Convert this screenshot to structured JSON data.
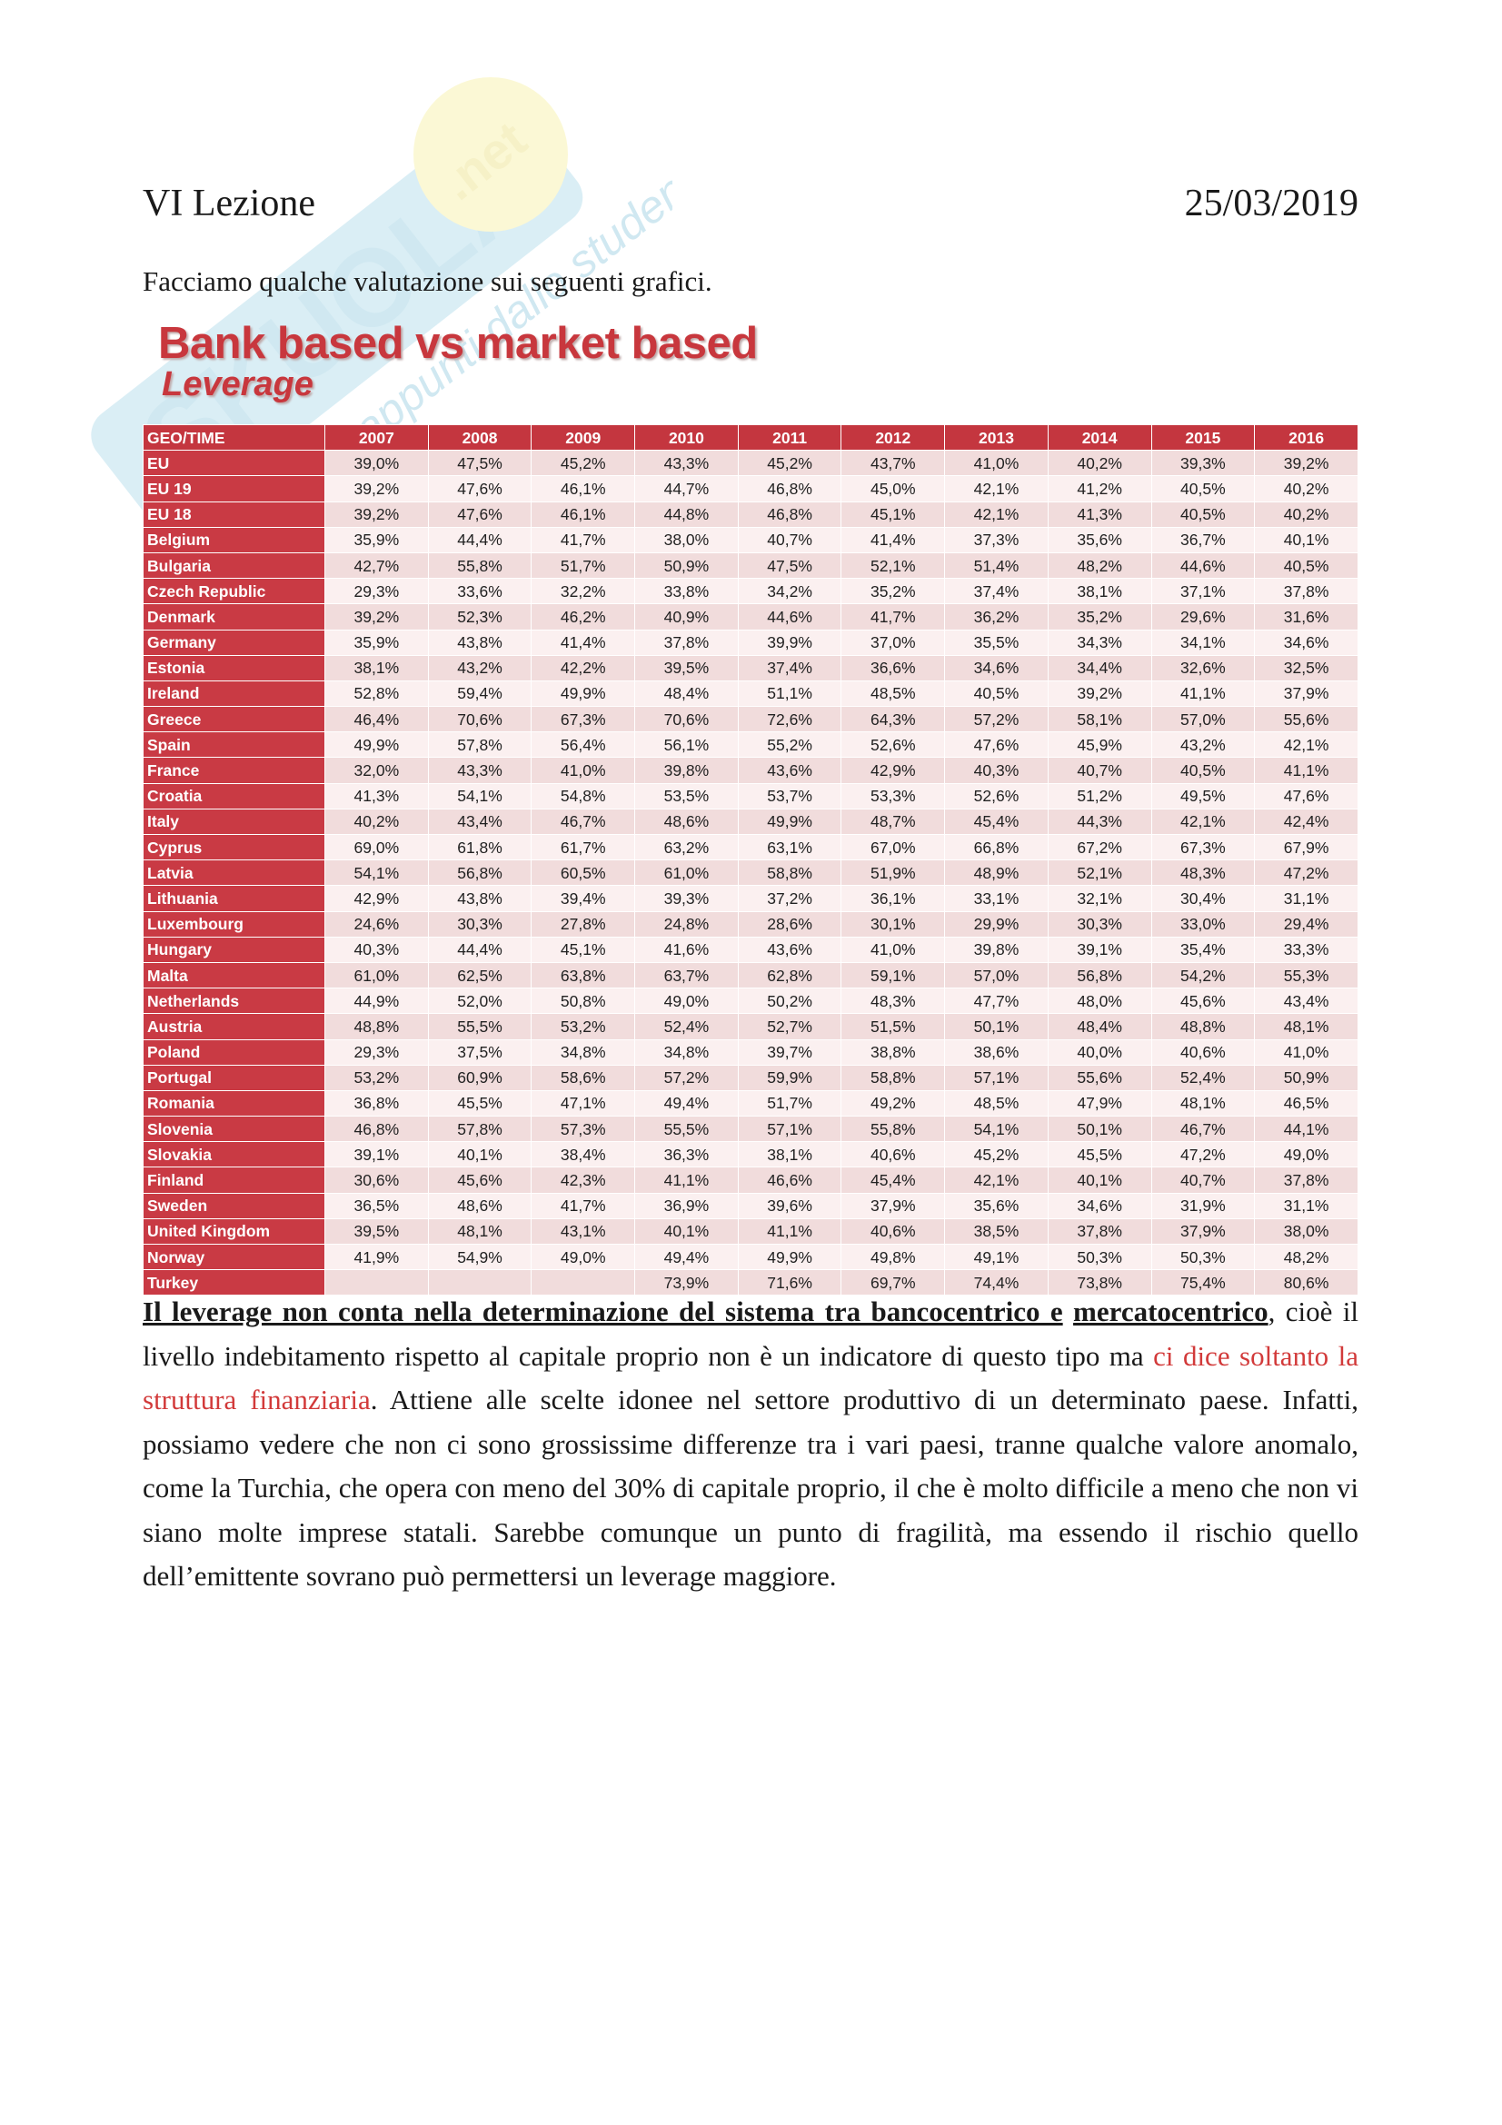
{
  "header": {
    "lesson": "VI Lezione",
    "date": "25/03/2019"
  },
  "intro": "Facciamo qualche valutazione sui seguenti grafici.",
  "watermark": {
    "brand": "Skuola.net",
    "tagline": "appunti dallo studente"
  },
  "figure": {
    "title": "Bank based vs market based",
    "subtitle": "Leverage"
  },
  "table": {
    "corner": "GEO/TIME",
    "years": [
      "2007",
      "2008",
      "2009",
      "2010",
      "2011",
      "2012",
      "2013",
      "2014",
      "2015",
      "2016"
    ],
    "rows": [
      {
        "geo": "EU",
        "values": [
          "39,0%",
          "47,5%",
          "45,2%",
          "43,3%",
          "45,2%",
          "43,7%",
          "41,0%",
          "40,2%",
          "39,3%",
          "39,2%"
        ]
      },
      {
        "geo": "EU 19",
        "values": [
          "39,2%",
          "47,6%",
          "46,1%",
          "44,7%",
          "46,8%",
          "45,0%",
          "42,1%",
          "41,2%",
          "40,5%",
          "40,2%"
        ]
      },
      {
        "geo": "EU 18",
        "values": [
          "39,2%",
          "47,6%",
          "46,1%",
          "44,8%",
          "46,8%",
          "45,1%",
          "42,1%",
          "41,3%",
          "40,5%",
          "40,2%"
        ]
      },
      {
        "geo": "Belgium",
        "values": [
          "35,9%",
          "44,4%",
          "41,7%",
          "38,0%",
          "40,7%",
          "41,4%",
          "37,3%",
          "35,6%",
          "36,7%",
          "40,1%"
        ]
      },
      {
        "geo": "Bulgaria",
        "values": [
          "42,7%",
          "55,8%",
          "51,7%",
          "50,9%",
          "47,5%",
          "52,1%",
          "51,4%",
          "48,2%",
          "44,6%",
          "40,5%"
        ]
      },
      {
        "geo": "Czech Republic",
        "values": [
          "29,3%",
          "33,6%",
          "32,2%",
          "33,8%",
          "34,2%",
          "35,2%",
          "37,4%",
          "38,1%",
          "37,1%",
          "37,8%"
        ]
      },
      {
        "geo": "Denmark",
        "values": [
          "39,2%",
          "52,3%",
          "46,2%",
          "40,9%",
          "44,6%",
          "41,7%",
          "36,2%",
          "35,2%",
          "29,6%",
          "31,6%"
        ]
      },
      {
        "geo": "Germany",
        "values": [
          "35,9%",
          "43,8%",
          "41,4%",
          "37,8%",
          "39,9%",
          "37,0%",
          "35,5%",
          "34,3%",
          "34,1%",
          "34,6%"
        ]
      },
      {
        "geo": "Estonia",
        "values": [
          "38,1%",
          "43,2%",
          "42,2%",
          "39,5%",
          "37,4%",
          "36,6%",
          "34,6%",
          "34,4%",
          "32,6%",
          "32,5%"
        ]
      },
      {
        "geo": "Ireland",
        "values": [
          "52,8%",
          "59,4%",
          "49,9%",
          "48,4%",
          "51,1%",
          "48,5%",
          "40,5%",
          "39,2%",
          "41,1%",
          "37,9%"
        ]
      },
      {
        "geo": "Greece",
        "values": [
          "46,4%",
          "70,6%",
          "67,3%",
          "70,6%",
          "72,6%",
          "64,3%",
          "57,2%",
          "58,1%",
          "57,0%",
          "55,6%"
        ]
      },
      {
        "geo": "Spain",
        "values": [
          "49,9%",
          "57,8%",
          "56,4%",
          "56,1%",
          "55,2%",
          "52,6%",
          "47,6%",
          "45,9%",
          "43,2%",
          "42,1%"
        ]
      },
      {
        "geo": "France",
        "values": [
          "32,0%",
          "43,3%",
          "41,0%",
          "39,8%",
          "43,6%",
          "42,9%",
          "40,3%",
          "40,7%",
          "40,5%",
          "41,1%"
        ]
      },
      {
        "geo": "Croatia",
        "values": [
          "41,3%",
          "54,1%",
          "54,8%",
          "53,5%",
          "53,7%",
          "53,3%",
          "52,6%",
          "51,2%",
          "49,5%",
          "47,6%"
        ]
      },
      {
        "geo": "Italy",
        "values": [
          "40,2%",
          "43,4%",
          "46,7%",
          "48,6%",
          "49,9%",
          "48,7%",
          "45,4%",
          "44,3%",
          "42,1%",
          "42,4%"
        ]
      },
      {
        "geo": "Cyprus",
        "values": [
          "69,0%",
          "61,8%",
          "61,7%",
          "63,2%",
          "63,1%",
          "67,0%",
          "66,8%",
          "67,2%",
          "67,3%",
          "67,9%"
        ]
      },
      {
        "geo": "Latvia",
        "values": [
          "54,1%",
          "56,8%",
          "60,5%",
          "61,0%",
          "58,8%",
          "51,9%",
          "48,9%",
          "52,1%",
          "48,3%",
          "47,2%"
        ]
      },
      {
        "geo": "Lithuania",
        "values": [
          "42,9%",
          "43,8%",
          "39,4%",
          "39,3%",
          "37,2%",
          "36,1%",
          "33,1%",
          "32,1%",
          "30,4%",
          "31,1%"
        ]
      },
      {
        "geo": "Luxembourg",
        "values": [
          "24,6%",
          "30,3%",
          "27,8%",
          "24,8%",
          "28,6%",
          "30,1%",
          "29,9%",
          "30,3%",
          "33,0%",
          "29,4%"
        ]
      },
      {
        "geo": "Hungary",
        "values": [
          "40,3%",
          "44,4%",
          "45,1%",
          "41,6%",
          "43,6%",
          "41,0%",
          "39,8%",
          "39,1%",
          "35,4%",
          "33,3%"
        ]
      },
      {
        "geo": "Malta",
        "values": [
          "61,0%",
          "62,5%",
          "63,8%",
          "63,7%",
          "62,8%",
          "59,1%",
          "57,0%",
          "56,8%",
          "54,2%",
          "55,3%"
        ]
      },
      {
        "geo": "Netherlands",
        "values": [
          "44,9%",
          "52,0%",
          "50,8%",
          "49,0%",
          "50,2%",
          "48,3%",
          "47,7%",
          "48,0%",
          "45,6%",
          "43,4%"
        ]
      },
      {
        "geo": "Austria",
        "values": [
          "48,8%",
          "55,5%",
          "53,2%",
          "52,4%",
          "52,7%",
          "51,5%",
          "50,1%",
          "48,4%",
          "48,8%",
          "48,1%"
        ]
      },
      {
        "geo": "Poland",
        "values": [
          "29,3%",
          "37,5%",
          "34,8%",
          "34,8%",
          "39,7%",
          "38,8%",
          "38,6%",
          "40,0%",
          "40,6%",
          "41,0%"
        ]
      },
      {
        "geo": "Portugal",
        "values": [
          "53,2%",
          "60,9%",
          "58,6%",
          "57,2%",
          "59,9%",
          "58,8%",
          "57,1%",
          "55,6%",
          "52,4%",
          "50,9%"
        ]
      },
      {
        "geo": "Romania",
        "values": [
          "36,8%",
          "45,5%",
          "47,1%",
          "49,4%",
          "51,7%",
          "49,2%",
          "48,5%",
          "47,9%",
          "48,1%",
          "46,5%"
        ]
      },
      {
        "geo": "Slovenia",
        "values": [
          "46,8%",
          "57,8%",
          "57,3%",
          "55,5%",
          "57,1%",
          "55,8%",
          "54,1%",
          "50,1%",
          "46,7%",
          "44,1%"
        ]
      },
      {
        "geo": "Slovakia",
        "values": [
          "39,1%",
          "40,1%",
          "38,4%",
          "36,3%",
          "38,1%",
          "40,6%",
          "45,2%",
          "45,5%",
          "47,2%",
          "49,0%"
        ]
      },
      {
        "geo": "Finland",
        "values": [
          "30,6%",
          "45,6%",
          "42,3%",
          "41,1%",
          "46,6%",
          "45,4%",
          "42,1%",
          "40,1%",
          "40,7%",
          "37,8%"
        ]
      },
      {
        "geo": "Sweden",
        "values": [
          "36,5%",
          "48,6%",
          "41,7%",
          "36,9%",
          "39,6%",
          "37,9%",
          "35,6%",
          "34,6%",
          "31,9%",
          "31,1%"
        ]
      },
      {
        "geo": "United Kingdom",
        "values": [
          "39,5%",
          "48,1%",
          "43,1%",
          "40,1%",
          "41,1%",
          "40,6%",
          "38,5%",
          "37,8%",
          "37,9%",
          "38,0%"
        ]
      },
      {
        "geo": "Norway",
        "values": [
          "41,9%",
          "54,9%",
          "49,0%",
          "49,4%",
          "49,9%",
          "49,8%",
          "49,1%",
          "50,3%",
          "50,3%",
          "48,2%"
        ]
      },
      {
        "geo": "Turkey",
        "values": [
          "",
          "",
          "",
          "73,9%",
          "71,6%",
          "69,7%",
          "74,4%",
          "73,8%",
          "75,4%",
          "80,6%"
        ]
      }
    ]
  },
  "body": {
    "emph1": "Il leverage non conta nella determinazione del sistema tra bancocentrico e",
    "emph2": "mercatocentrico",
    "text1": ", cioè il livello indebitamento rispetto al capitale proprio non è un indicatore di questo tipo ma ",
    "red": "ci dice soltanto la struttura finanziaria",
    "text2": ". Attiene alle scelte idonee nel settore produttivo di un determinato paese. Infatti, possiamo vedere che non ci sono grossissime differenze tra i vari paesi, tranne qualche valore anomalo, come la Turchia, che opera con meno del 30% di capitale proprio, il che è molto difficile a meno che non vi siano molte imprese statali. Sarebbe comunque un punto di fragilità, ma essendo il rischio quello dell’emittente sovrano può permettersi un leverage maggiore.",
    "colors": {
      "accent_red": "#d23a3a",
      "table_header": "#c4363f"
    }
  }
}
